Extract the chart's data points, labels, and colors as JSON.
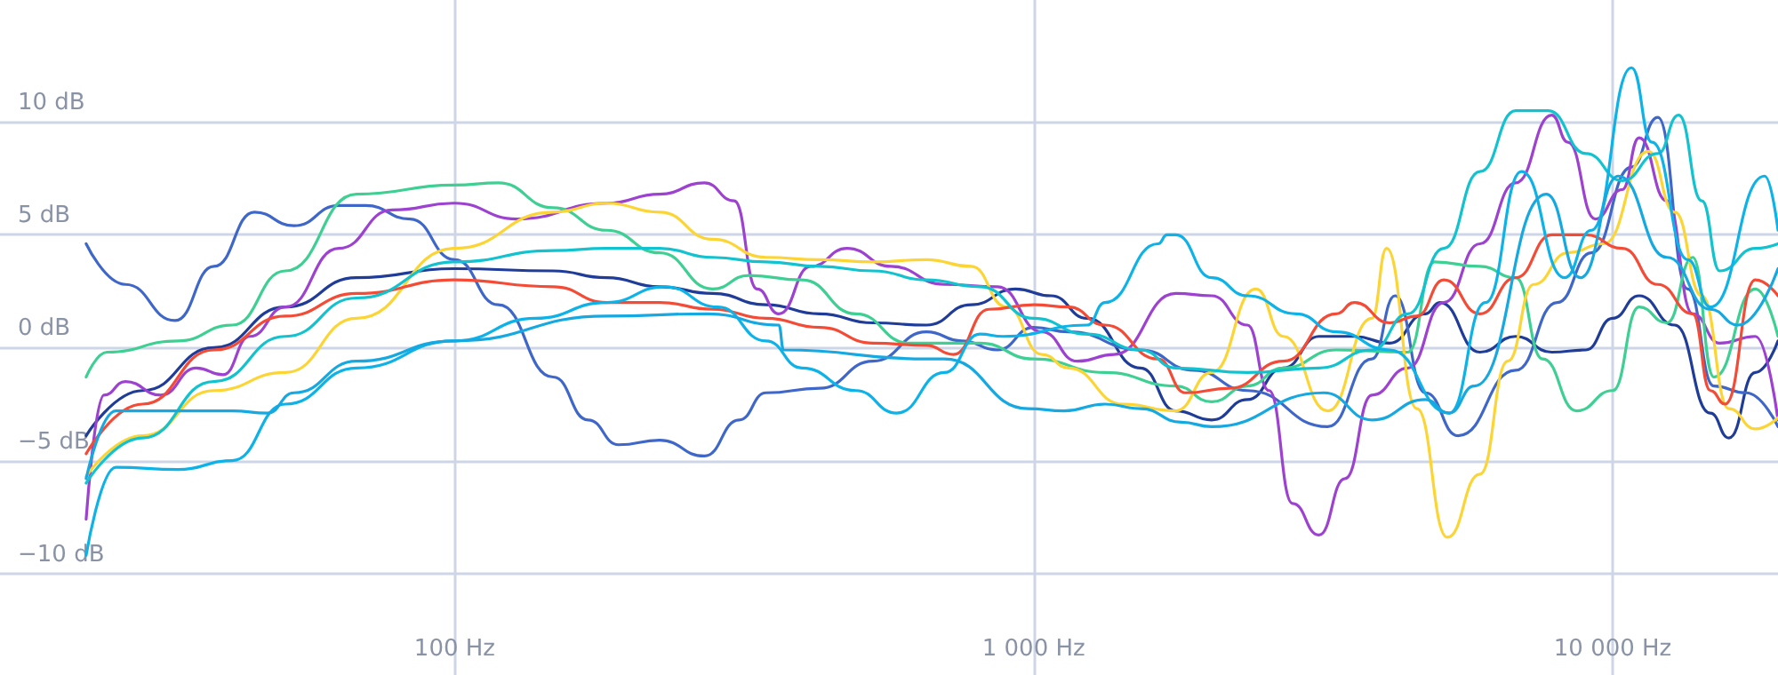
{
  "chart_data": {
    "type": "line",
    "log": "x",
    "grid": true,
    "marker": "none",
    "xlim": [
      16.4,
      19300
    ],
    "xticks": [
      {
        "value": 100,
        "label": "100 Hz"
      },
      {
        "value": 1000,
        "label": "1 000 Hz"
      },
      {
        "value": 10000,
        "label": "10 000 Hz"
      }
    ],
    "ylim": [
      -14.5,
      15.4
    ],
    "yticks": [
      {
        "value": -10,
        "label": "−10 dB"
      },
      {
        "value": -5,
        "label": "−5 dB"
      },
      {
        "value": 0,
        "label": "0 dB"
      },
      {
        "value": 5,
        "label": "5 dB"
      },
      {
        "value": 10,
        "label": "10 dB"
      }
    ],
    "series": [
      {
        "color": "#1f3c99",
        "x": [
          23.1,
          28.9,
          38.4,
          51.0,
          67.7,
          100,
          148,
          183,
          226,
          279,
          345,
          427,
          528,
          653,
          780,
          930,
          1072,
          1237,
          1530,
          1760,
          2030,
          2340,
          2700,
          3110,
          3580,
          4120,
          4750,
          5030,
          5900,
          6800,
          7850,
          8990,
          10000,
          11110,
          12800,
          14750,
          15880,
          17640,
          19300
        ],
        "values": [
          -3.9,
          -1.9,
          0.0,
          1.8,
          3.1,
          3.5,
          3.4,
          3.1,
          2.7,
          2.4,
          1.9,
          1.5,
          1.1,
          1.0,
          1.9,
          2.6,
          2.3,
          1.3,
          -0.9,
          -2.8,
          -3.2,
          -2.3,
          -0.9,
          0.5,
          0.5,
          0.2,
          1.5,
          2.0,
          -0.2,
          0.5,
          -0.2,
          -0.1,
          1.3,
          2.3,
          1.0,
          -2.9,
          -4.0,
          -1.1,
          0.3
        ]
      },
      {
        "color": "#3f67c9",
        "x": [
          23.1,
          27.0,
          32.9,
          38.4,
          45.1,
          52.8,
          63.1,
          70.2,
          83.8,
          100,
          119,
          148,
          170,
          192,
          226,
          270,
          310,
          345,
          427,
          528,
          653,
          752,
          866,
          1000,
          1149,
          1530,
          1890,
          2340,
          3220,
          3840,
          4210,
          4750,
          5410,
          6800,
          8020,
          9190,
          10780,
          11970,
          13480,
          14960,
          17000,
          19300
        ],
        "values": [
          4.6,
          2.8,
          1.2,
          3.6,
          6.0,
          5.4,
          6.3,
          6.3,
          5.7,
          3.9,
          1.9,
          -1.3,
          -3.2,
          -4.3,
          -4.1,
          -4.8,
          -3.2,
          -2.0,
          -1.8,
          -0.6,
          0.7,
          0.3,
          -0.1,
          0.9,
          0.7,
          -0.1,
          -1.0,
          -1.9,
          -3.5,
          -0.5,
          2.3,
          -2.0,
          -3.9,
          -1.0,
          2.0,
          4.2,
          8.0,
          10.2,
          2.6,
          -1.7,
          -2.0,
          -3.5
        ]
      },
      {
        "color": "#9d42d0",
        "x": [
          23.1,
          24.8,
          27.0,
          31.1,
          35.8,
          39.8,
          44.3,
          51.0,
          63.1,
          78.0,
          100,
          128,
          183,
          226,
          270,
          304,
          333,
          363,
          412,
          476,
          567,
          701,
          866,
          1034,
          1190,
          1376,
          1760,
          2030,
          2340,
          2550,
          2800,
          3110,
          3450,
          3840,
          4430,
          5110,
          5900,
          6800,
          7850,
          8370,
          9330,
          10390,
          11110,
          12410,
          13750,
          15310,
          17640,
          19300
        ],
        "values": [
          -7.6,
          -2.1,
          -1.5,
          -2.1,
          -0.9,
          -1.2,
          0.5,
          1.8,
          4.4,
          6.1,
          6.4,
          5.7,
          6.4,
          6.8,
          7.3,
          6.5,
          2.6,
          1.5,
          3.6,
          4.4,
          3.6,
          2.8,
          2.7,
          0.7,
          -0.6,
          -0.3,
          2.4,
          2.3,
          1.0,
          -1.9,
          -6.9,
          -8.3,
          -5.8,
          -2.1,
          -0.9,
          2.0,
          4.6,
          7.3,
          10.3,
          9.1,
          5.7,
          7.0,
          9.3,
          6.5,
          1.5,
          0.2,
          0.5,
          -3.2
        ]
      },
      {
        "color": "#3ecf93",
        "x": [
          23.1,
          25.1,
          33.3,
          41.3,
          51.0,
          67.7,
          100,
          119,
          148,
          183,
          226,
          279,
          322,
          398,
          493,
          609,
          808,
          1000,
          1328,
          1760,
          2030,
          2340,
          2700,
          3330,
          4430,
          4920,
          5900,
          6800,
          7570,
          8670,
          10000,
          11110,
          12410,
          13750,
          14960,
          17640,
          19300
        ],
        "values": [
          -1.3,
          -0.2,
          0.3,
          1.0,
          3.4,
          6.8,
          7.2,
          7.3,
          6.2,
          5.2,
          4.2,
          2.6,
          3.2,
          3.0,
          1.5,
          0.2,
          0.2,
          -0.5,
          -1.1,
          -1.7,
          -2.4,
          -1.7,
          -0.9,
          -0.1,
          -0.2,
          3.8,
          3.6,
          3.1,
          -0.5,
          -2.8,
          -1.9,
          1.8,
          1.1,
          4.0,
          -1.3,
          2.6,
          0.5
        ]
      },
      {
        "color": "#fcd535",
        "x": [
          23.1,
          28.9,
          38.4,
          51.0,
          67.7,
          100,
          148,
          183,
          226,
          279,
          345,
          427,
          528,
          653,
          780,
          898,
          1034,
          1149,
          1425,
          1760,
          2030,
          2420,
          2700,
          3220,
          3840,
          4070,
          4590,
          5180,
          5900,
          6590,
          7300,
          8370,
          9640,
          11530,
          12800,
          14260,
          15880,
          17640,
          19300
        ],
        "values": [
          -5.7,
          -3.9,
          -1.9,
          -1.1,
          1.3,
          4.4,
          6.0,
          6.4,
          6.0,
          4.8,
          4.0,
          3.9,
          3.8,
          3.9,
          3.6,
          1.8,
          -0.3,
          -0.9,
          -2.5,
          -2.8,
          -1.1,
          2.6,
          0.5,
          -2.8,
          1.3,
          4.4,
          -2.7,
          -8.4,
          -5.6,
          -0.6,
          2.8,
          4.2,
          4.6,
          8.7,
          6.0,
          2.3,
          -2.7,
          -3.6,
          -3.1
        ]
      },
      {
        "color": "#f44b37",
        "x": [
          23.1,
          28.9,
          38.4,
          51.0,
          67.7,
          100,
          148,
          183,
          226,
          279,
          345,
          427,
          528,
          653,
          727,
          837,
          1000,
          1149,
          1328,
          1640,
          1830,
          2180,
          2700,
          3330,
          3580,
          4120,
          4590,
          5110,
          5900,
          6800,
          7850,
          8990,
          10390,
          11970,
          13750,
          14750,
          15640,
          17640,
          19300
        ],
        "values": [
          -4.7,
          -2.5,
          -0.1,
          1.4,
          2.4,
          3.0,
          2.7,
          2.0,
          2.0,
          1.7,
          1.3,
          0.9,
          0.2,
          0.1,
          -0.3,
          1.7,
          1.9,
          1.8,
          1.0,
          -0.5,
          -2.0,
          -1.8,
          -0.6,
          1.5,
          2.0,
          1.1,
          1.4,
          3.0,
          1.5,
          3.1,
          5.0,
          5.0,
          4.4,
          2.8,
          1.5,
          -1.9,
          -2.5,
          3.0,
          2.3
        ]
      },
      {
        "color": "#12c3cf",
        "x": [
          23.1,
          28.9,
          38.4,
          51.0,
          67.7,
          100,
          148,
          183,
          226,
          279,
          345,
          427,
          528,
          653,
          808,
          1000,
          1237,
          1530,
          1760,
          2340,
          3110,
          3840,
          4430,
          5110,
          5900,
          6800,
          7740,
          8990,
          10390,
          11970,
          13000,
          14260,
          15310,
          17640,
          19300
        ],
        "values": [
          -6.0,
          -4.0,
          -1.5,
          0.5,
          2.2,
          3.8,
          4.3,
          4.4,
          4.4,
          4.0,
          3.8,
          3.6,
          3.4,
          3.0,
          2.7,
          1.3,
          0.6,
          -0.1,
          -0.9,
          -1.1,
          -0.9,
          -0.1,
          1.5,
          4.4,
          7.8,
          10.5,
          10.5,
          8.6,
          7.4,
          8.6,
          10.3,
          6.5,
          3.4,
          4.4,
          4.6
        ]
      },
      {
        "color": "#0db2e8",
        "x": [
          23.1,
          26.0,
          33.3,
          41.3,
          51.0,
          67.7,
          100,
          138,
          183,
          231,
          285,
          345,
          398,
          493,
          580,
          701,
          808,
          885,
          1237,
          1328,
          1640,
          1700,
          1760,
          2030,
          2340,
          2840,
          3330,
          4120,
          5220,
          6030,
          6960,
          8260,
          9190,
          10780,
          11690,
          13480,
          14750,
          18300,
          19300
        ],
        "values": [
          -9.2,
          -5.3,
          -5.4,
          -5.0,
          -2.5,
          -0.9,
          0.3,
          1.3,
          2.0,
          2.7,
          1.8,
          0.3,
          -0.9,
          -1.9,
          -2.9,
          -1.1,
          0.6,
          0.5,
          1.0,
          2.0,
          4.6,
          5.0,
          5.0,
          3.1,
          2.3,
          1.5,
          0.7,
          -0.1,
          -2.9,
          2.0,
          7.8,
          3.1,
          5.2,
          12.4,
          9.1,
          3.9,
          1.8,
          7.6,
          5.2
        ]
      },
      {
        "color": "#16a8e0",
        "x": [
          23.1,
          26.0,
          33.3,
          41.3,
          47.5,
          52.8,
          67.7,
          100,
          183,
          273,
          363,
          370,
          653,
          701,
          979,
          1128,
          1328,
          1530,
          1800,
          2030,
          3170,
          3840,
          4750,
          5220,
          5770,
          7680,
          8800,
          10230,
          12410,
          14750,
          16470,
          19300
        ],
        "values": [
          -5.8,
          -2.8,
          -2.8,
          -2.8,
          -2.9,
          -2.0,
          -0.6,
          0.3,
          1.4,
          1.5,
          1.0,
          -0.1,
          -0.5,
          -0.5,
          -2.7,
          -2.8,
          -2.5,
          -2.7,
          -3.3,
          -3.5,
          -2.0,
          -3.2,
          -2.3,
          -2.9,
          -1.7,
          6.8,
          3.1,
          7.6,
          4.0,
          1.7,
          1.0,
          3.5
        ]
      }
    ]
  }
}
